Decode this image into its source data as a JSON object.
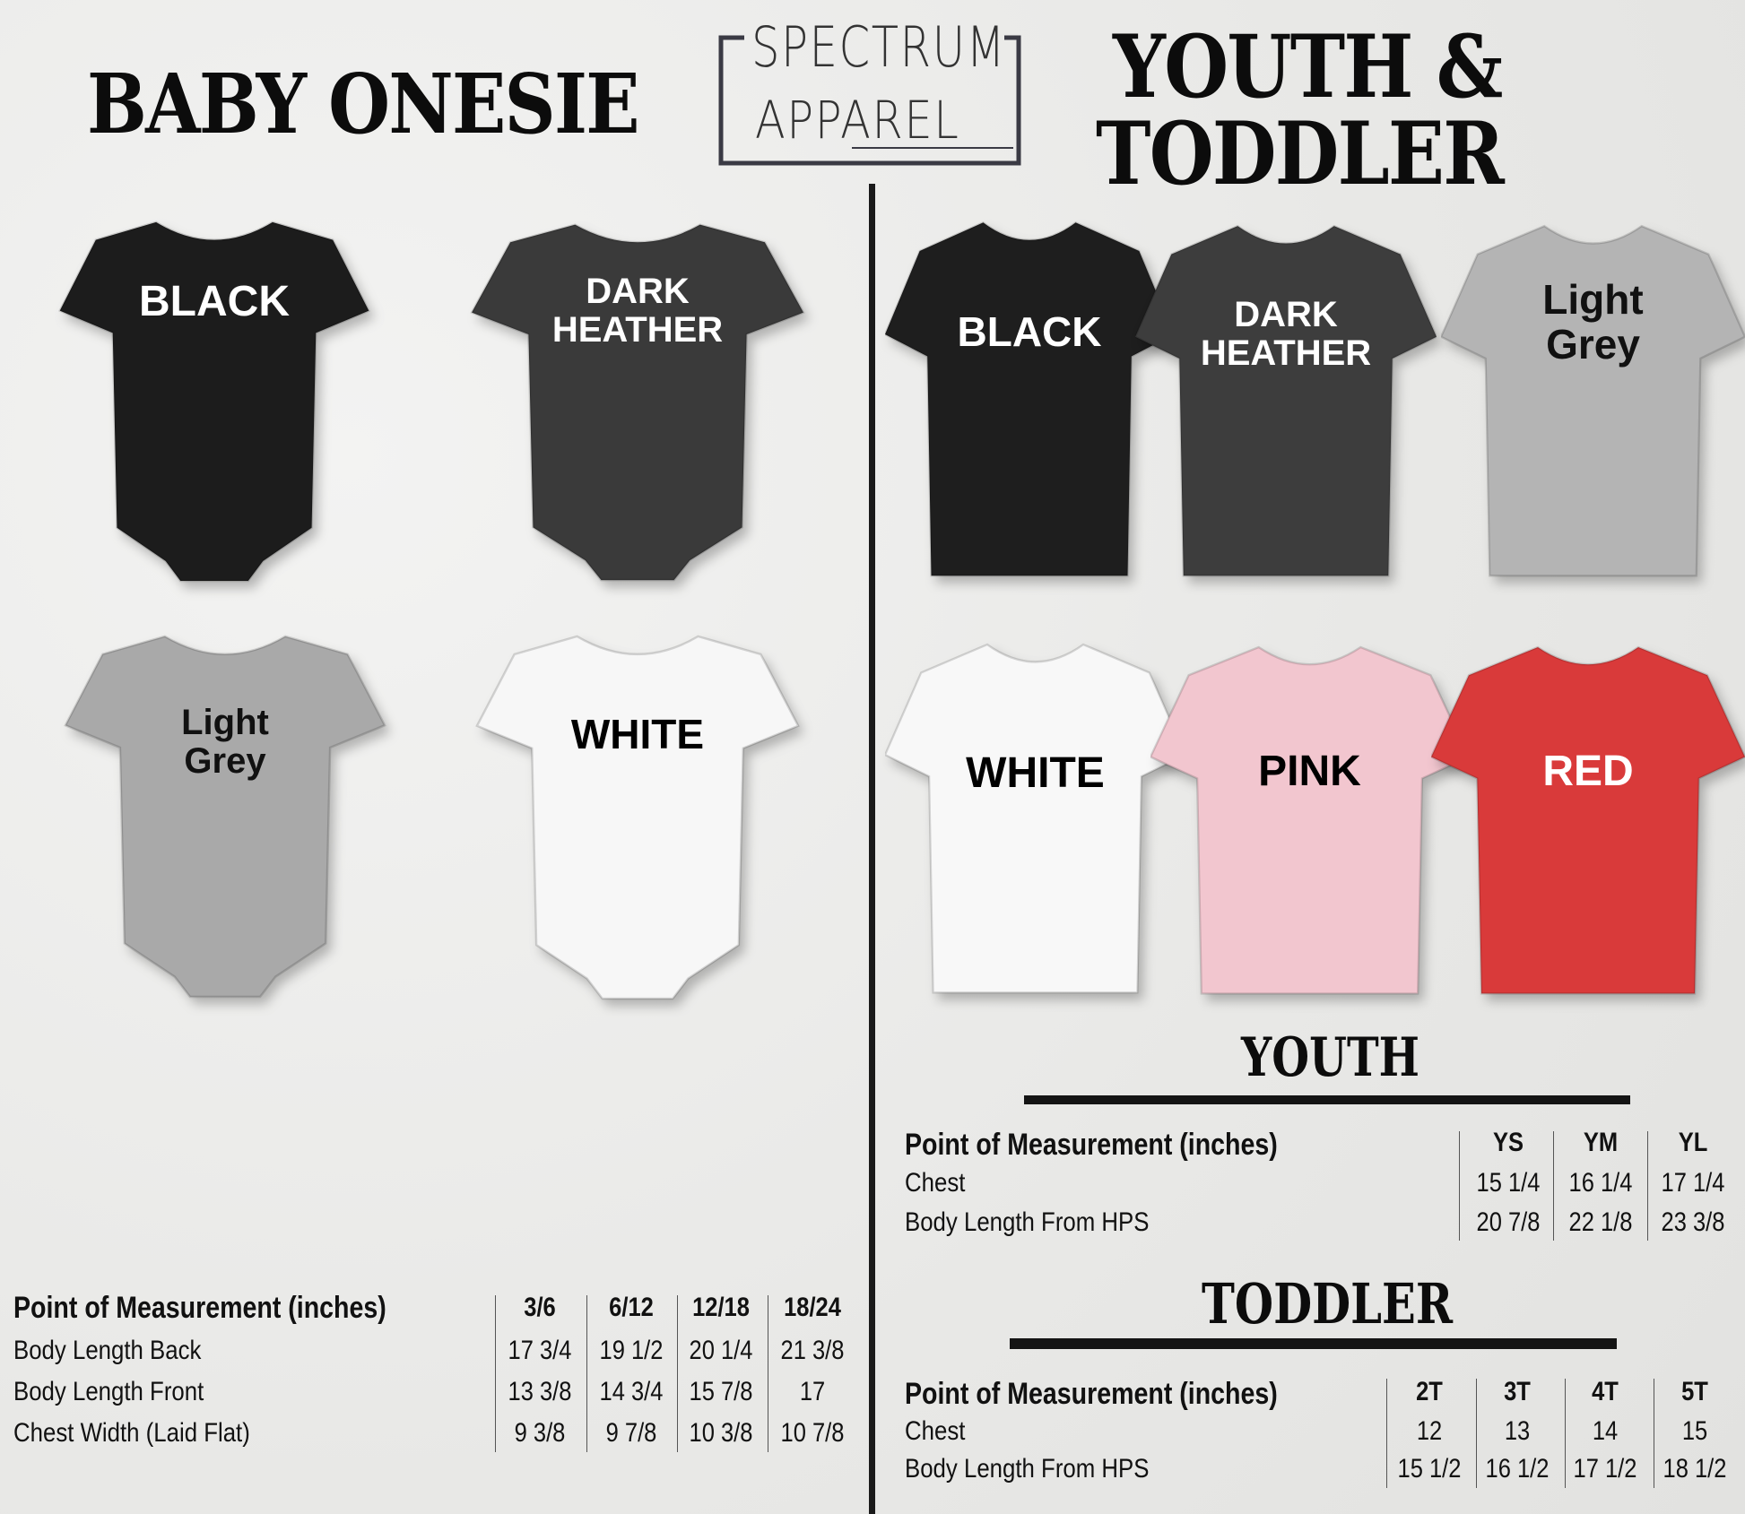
{
  "titles": {
    "baby": "BABY ONESIE",
    "youth_line1": "YOUTH &",
    "youth_line2": "TODDLER",
    "youth_table": "YOUTH",
    "toddler_table": "TODDLER"
  },
  "logo": {
    "line1": "SPECTRUM",
    "line2": "APPAREL"
  },
  "onesies": [
    {
      "lines": [
        "BLACK"
      ],
      "color": "#1c1c1c",
      "text_color": "#ffffff"
    },
    {
      "lines": [
        "DARK",
        "HEATHER"
      ],
      "color": "#3a3a3a",
      "text_color": "#ffffff"
    },
    {
      "lines": [
        "Light",
        "Grey"
      ],
      "color": "#a9a9a9",
      "text_color": "#111111"
    },
    {
      "lines": [
        "WHITE"
      ],
      "color": "#f7f7f7",
      "text_color": "#000000"
    }
  ],
  "tees": [
    {
      "lines": [
        "BLACK"
      ],
      "color": "#1e1e1e",
      "text_color": "#ffffff"
    },
    {
      "lines": [
        "DARK",
        "HEATHER"
      ],
      "color": "#3d3d3d",
      "text_color": "#ffffff"
    },
    {
      "lines": [
        "Light",
        "Grey"
      ],
      "color": "#b4b4b4",
      "text_color": "#111111"
    },
    {
      "lines": [
        "WHITE"
      ],
      "color": "#f8f8f8",
      "text_color": "#000000"
    },
    {
      "lines": [
        "PINK"
      ],
      "color": "#f2c6cf",
      "text_color": "#000000"
    },
    {
      "lines": [
        "RED"
      ],
      "color": "#d93a3a",
      "text_color": "#ffffff"
    }
  ],
  "baby_table": {
    "header": "Point of Measurement (inches)",
    "sizes": [
      "3/6",
      "6/12",
      "12/18",
      "18/24"
    ],
    "rows": [
      {
        "label": "Body Length Back",
        "values": [
          "17 3/4",
          "19 1/2",
          "20 1/4",
          "21 3/8"
        ]
      },
      {
        "label": "Body Length Front",
        "values": [
          "13 3/8",
          "14 3/4",
          "15 7/8",
          "17"
        ]
      },
      {
        "label": "Chest Width (Laid Flat)",
        "values": [
          "9 3/8",
          "9 7/8",
          "10 3/8",
          "10 7/8"
        ]
      }
    ]
  },
  "youth_table": {
    "header": "Point of Measurement (inches)",
    "sizes": [
      "YS",
      "YM",
      "YL"
    ],
    "rows": [
      {
        "label": "Chest",
        "values": [
          "15 1/4",
          "16 1/4",
          "17 1/4"
        ]
      },
      {
        "label": "Body Length From HPS",
        "values": [
          "20 7/8",
          "22 1/8",
          "23 3/8"
        ]
      }
    ]
  },
  "toddler_table": {
    "header": "Point of Measurement (inches)",
    "sizes": [
      "2T",
      "3T",
      "4T",
      "5T"
    ],
    "rows": [
      {
        "label": "Chest",
        "values": [
          "12",
          "13",
          "14",
          "15"
        ]
      },
      {
        "label": "Body Length From HPS",
        "values": [
          "15 1/2",
          "16 1/2",
          "17 1/2",
          "18 1/2"
        ]
      }
    ]
  }
}
